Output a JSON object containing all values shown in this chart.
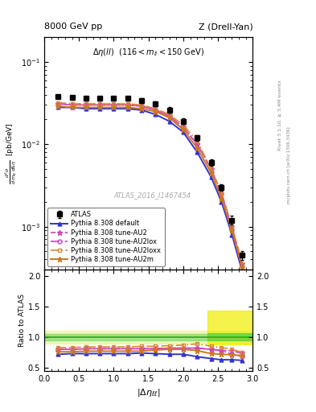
{
  "title_left": "8000 GeV pp",
  "title_right": "Z (Drell-Yan)",
  "annotation": "Δη(ll) (116 < m_{ll} < 150 GeV)",
  "watermark": "ATLAS_2016_I1467454",
  "right_label1": "Rivet 3.1.10, ≥ 3.4M events",
  "right_label2": "mcplots.cern.ch [arXiv:1306.3436]",
  "ylabel_ratio": "Ratio to ATLAS",
  "x_data": [
    0.2,
    0.4,
    0.6,
    0.8,
    1.0,
    1.2,
    1.4,
    1.6,
    1.8,
    2.0,
    2.2,
    2.4,
    2.55,
    2.7,
    2.85
  ],
  "atlas_y": [
    0.038,
    0.037,
    0.036,
    0.036,
    0.036,
    0.036,
    0.034,
    0.031,
    0.026,
    0.019,
    0.012,
    0.006,
    0.003,
    0.0012,
    0.00045
  ],
  "atlas_yerr": [
    0.002,
    0.002,
    0.002,
    0.002,
    0.002,
    0.002,
    0.002,
    0.002,
    0.002,
    0.0015,
    0.001,
    0.0005,
    0.0003,
    0.00015,
    6e-05
  ],
  "default_y": [
    0.028,
    0.028,
    0.027,
    0.027,
    0.027,
    0.027,
    0.026,
    0.023,
    0.019,
    0.014,
    0.008,
    0.004,
    0.002,
    0.0008,
    0.00028
  ],
  "au2_y": [
    0.031,
    0.03,
    0.03,
    0.03,
    0.03,
    0.03,
    0.029,
    0.026,
    0.022,
    0.016,
    0.01,
    0.005,
    0.0025,
    0.001,
    0.00035
  ],
  "au2lox_y": [
    0.031,
    0.03,
    0.03,
    0.03,
    0.03,
    0.03,
    0.029,
    0.026,
    0.022,
    0.016,
    0.01,
    0.005,
    0.0025,
    0.0009,
    0.0003
  ],
  "au2loxx_y": [
    0.032,
    0.031,
    0.031,
    0.031,
    0.031,
    0.031,
    0.03,
    0.027,
    0.023,
    0.017,
    0.011,
    0.005,
    0.0026,
    0.001,
    0.00035
  ],
  "au2m_y": [
    0.029,
    0.028,
    0.028,
    0.028,
    0.028,
    0.028,
    0.027,
    0.025,
    0.021,
    0.015,
    0.009,
    0.0045,
    0.0022,
    0.0009,
    0.00032
  ],
  "ratio_default": [
    0.72,
    0.73,
    0.73,
    0.73,
    0.73,
    0.73,
    0.74,
    0.73,
    0.72,
    0.72,
    0.68,
    0.65,
    0.63,
    0.63,
    0.62
  ],
  "ratio_au2": [
    0.8,
    0.8,
    0.81,
    0.81,
    0.81,
    0.81,
    0.81,
    0.81,
    0.82,
    0.82,
    0.82,
    0.8,
    0.78,
    0.78,
    0.73
  ],
  "ratio_au2lox": [
    0.8,
    0.8,
    0.81,
    0.81,
    0.81,
    0.81,
    0.81,
    0.81,
    0.82,
    0.82,
    0.82,
    0.8,
    0.78,
    0.72,
    0.68
  ],
  "ratio_au2loxx": [
    0.83,
    0.83,
    0.84,
    0.84,
    0.84,
    0.84,
    0.85,
    0.85,
    0.86,
    0.87,
    0.89,
    0.85,
    0.83,
    0.8,
    0.75
  ],
  "ratio_au2m": [
    0.76,
    0.76,
    0.77,
    0.77,
    0.77,
    0.77,
    0.77,
    0.79,
    0.8,
    0.8,
    0.78,
    0.73,
    0.72,
    0.71,
    0.7
  ],
  "color_default": "#3333cc",
  "color_au2": "#cc44aa",
  "color_au2lox": "#cc44aa",
  "color_au2loxx": "#cc7733",
  "color_au2m": "#cc7722",
  "xlim": [
    0.0,
    3.0
  ],
  "ylim_main": [
    0.0003,
    0.2
  ],
  "ylim_ratio": [
    0.45,
    2.1
  ],
  "yticks_ratio": [
    0.5,
    1.0,
    1.5,
    2.0
  ]
}
